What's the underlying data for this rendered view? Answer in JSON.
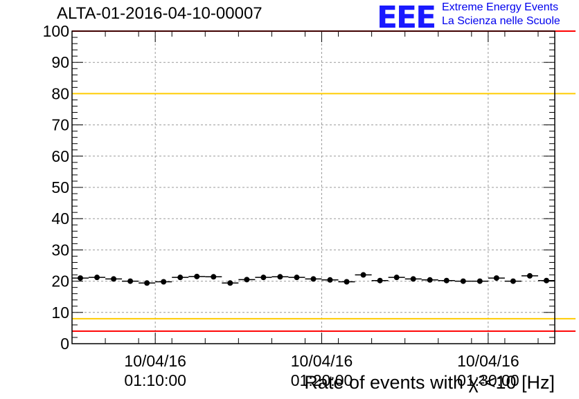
{
  "header": {
    "run_title": "ALTA-01-2016-04-10-00007",
    "logo_text": "EEE",
    "logo_line1": "Extreme Energy Events",
    "logo_line2": "La Scienza nelle Scuole"
  },
  "colors": {
    "red_line": "#ff0000",
    "yellow_line": "#ffcc00",
    "points": "#000000",
    "grid": "#999999",
    "logo": "#1a1aff"
  },
  "chart_data": {
    "type": "scatter",
    "title": "ALTA-01-2016-04-10-00007",
    "ylabel": "Rate of events with χ²<10 [Hz]",
    "xlabel": "",
    "ylim": [
      0,
      100
    ],
    "yticks": [
      0,
      10,
      20,
      30,
      40,
      50,
      60,
      70,
      80,
      90,
      100
    ],
    "xlim": [
      "2016-04-10T01:05:00",
      "2016-04-10T01:34:00"
    ],
    "xticks": [
      {
        "x": "2016-04-10T01:10:00",
        "label1": "10/04/16",
        "label2": "01:10:00"
      },
      {
        "x": "2016-04-10T01:20:00",
        "label1": "10/04/16",
        "label2": "01:20:00"
      },
      {
        "x": "2016-04-10T01:30:00",
        "label1": "10/04/16",
        "label2": "01:30:00"
      }
    ],
    "grid": true,
    "reference_lines": [
      {
        "y": 4,
        "color": "#ff0000"
      },
      {
        "y": 8,
        "color": "#ffcc00"
      },
      {
        "y": 80,
        "color": "#ffcc00"
      },
      {
        "y": 100,
        "color": "#ff0000"
      }
    ],
    "bin_minutes": 1,
    "points": [
      {
        "x": "2016-04-10T01:05:30",
        "y": 21.0
      },
      {
        "x": "2016-04-10T01:06:30",
        "y": 21.2
      },
      {
        "x": "2016-04-10T01:07:30",
        "y": 20.7
      },
      {
        "x": "2016-04-10T01:08:30",
        "y": 20.0
      },
      {
        "x": "2016-04-10T01:09:30",
        "y": 19.4
      },
      {
        "x": "2016-04-10T01:10:30",
        "y": 19.8
      },
      {
        "x": "2016-04-10T01:11:30",
        "y": 21.2
      },
      {
        "x": "2016-04-10T01:12:30",
        "y": 21.5
      },
      {
        "x": "2016-04-10T01:13:30",
        "y": 21.4
      },
      {
        "x": "2016-04-10T01:14:30",
        "y": 19.4
      },
      {
        "x": "2016-04-10T01:15:30",
        "y": 20.5
      },
      {
        "x": "2016-04-10T01:16:30",
        "y": 21.2
      },
      {
        "x": "2016-04-10T01:17:30",
        "y": 21.4
      },
      {
        "x": "2016-04-10T01:18:30",
        "y": 21.2
      },
      {
        "x": "2016-04-10T01:19:30",
        "y": 20.7
      },
      {
        "x": "2016-04-10T01:20:30",
        "y": 20.4
      },
      {
        "x": "2016-04-10T01:21:30",
        "y": 19.8
      },
      {
        "x": "2016-04-10T01:22:30",
        "y": 22.0
      },
      {
        "x": "2016-04-10T01:23:30",
        "y": 20.2
      },
      {
        "x": "2016-04-10T01:24:30",
        "y": 21.2
      },
      {
        "x": "2016-04-10T01:25:30",
        "y": 20.7
      },
      {
        "x": "2016-04-10T01:26:30",
        "y": 20.4
      },
      {
        "x": "2016-04-10T01:27:30",
        "y": 20.2
      },
      {
        "x": "2016-04-10T01:28:30",
        "y": 20.0
      },
      {
        "x": "2016-04-10T01:29:30",
        "y": 20.0
      },
      {
        "x": "2016-04-10T01:30:30",
        "y": 21.0
      },
      {
        "x": "2016-04-10T01:31:30",
        "y": 20.0
      },
      {
        "x": "2016-04-10T01:32:30",
        "y": 21.7
      },
      {
        "x": "2016-04-10T01:33:30",
        "y": 20.2
      }
    ]
  }
}
